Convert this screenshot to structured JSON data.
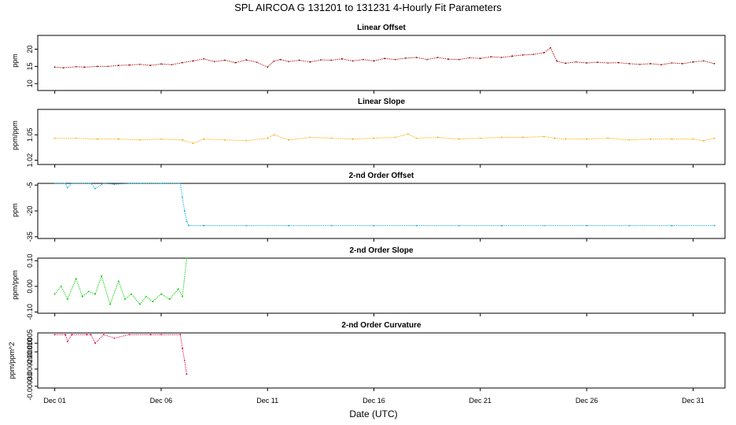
{
  "figure": {
    "title": "SPL   AIRCOA G   131201 to 131231   4-Hourly Fit Parameters",
    "xlabel": "Date (UTC)",
    "x_ticks": [
      {
        "label": "Dec 01",
        "day": 1
      },
      {
        "label": "Dec 06",
        "day": 6
      },
      {
        "label": "Dec 11",
        "day": 11
      },
      {
        "label": "Dec 16",
        "day": 16
      },
      {
        "label": "Dec 21",
        "day": 21
      },
      {
        "label": "Dec 26",
        "day": 26
      },
      {
        "label": "Dec 31",
        "day": 31
      }
    ],
    "x_range_days": [
      0.2,
      32.5
    ],
    "style": "dotted points per 4-hour interval"
  },
  "chart_data": [
    {
      "type": "scatter",
      "title": "Linear Offset",
      "ylabel": "ppm",
      "ylim": [
        8,
        24
      ],
      "y_ticks": [
        {
          "v": 10,
          "label": "10"
        },
        {
          "v": 15,
          "label": "15"
        },
        {
          "v": 20,
          "label": "20"
        }
      ],
      "color": "#a00000",
      "x_days": [
        1.0,
        1.4,
        2.0,
        2.4,
        3.0,
        3.5,
        4.0,
        4.5,
        5.0,
        5.5,
        6.0,
        6.5,
        7.0,
        7.5,
        8.0,
        8.5,
        9.0,
        9.5,
        10.0,
        10.5,
        11.0,
        11.3,
        11.6,
        12.0,
        12.5,
        13.0,
        13.5,
        14.0,
        14.5,
        15.0,
        15.5,
        16.0,
        16.5,
        17.0,
        17.5,
        18.0,
        18.5,
        19.0,
        19.5,
        20.0,
        20.5,
        21.0,
        21.5,
        22.0,
        22.5,
        23.0,
        23.5,
        24.0,
        24.3,
        24.6,
        25.0,
        25.5,
        26.0,
        26.5,
        27.0,
        27.5,
        28.0,
        28.5,
        29.0,
        29.5,
        30.0,
        30.5,
        31.0,
        31.5,
        32.0
      ],
      "values": [
        14.8,
        14.6,
        14.9,
        14.8,
        15.0,
        15.0,
        15.3,
        15.4,
        15.6,
        15.3,
        15.7,
        15.5,
        16.1,
        16.6,
        17.2,
        16.4,
        16.8,
        16.1,
        16.9,
        16.2,
        14.8,
        16.5,
        17.0,
        16.4,
        16.8,
        16.3,
        16.9,
        16.8,
        17.2,
        16.6,
        17.0,
        16.6,
        17.3,
        17.0,
        17.4,
        17.6,
        17.0,
        17.6,
        17.1,
        17.0,
        17.5,
        17.3,
        17.8,
        17.6,
        18.0,
        18.3,
        18.5,
        19.0,
        20.4,
        16.5,
        15.9,
        16.3,
        16.0,
        16.2,
        16.0,
        16.1,
        15.8,
        15.6,
        15.8,
        15.5,
        16.0,
        15.8,
        16.3,
        16.6,
        15.8
      ]
    },
    {
      "type": "scatter",
      "title": "Linear Slope",
      "ylabel": "ppm/ppm",
      "ylim": [
        1.015,
        1.08
      ],
      "y_ticks": [
        {
          "v": 1.02,
          "label": "1.02"
        },
        {
          "v": 1.05,
          "label": "1.05"
        }
      ],
      "color": "#ffa500",
      "x_days": [
        1.0,
        2.0,
        3.0,
        4.0,
        5.0,
        6.0,
        7.0,
        7.5,
        8.0,
        9.0,
        10.0,
        11.0,
        11.3,
        12.0,
        13.0,
        14.0,
        15.0,
        16.0,
        17.0,
        17.6,
        18.0,
        19.0,
        20.0,
        21.0,
        22.0,
        23.0,
        24.0,
        24.5,
        25.0,
        26.0,
        27.0,
        28.0,
        29.0,
        30.0,
        31.0,
        31.5,
        32.0
      ],
      "values": [
        1.046,
        1.046,
        1.045,
        1.045,
        1.044,
        1.045,
        1.044,
        1.04,
        1.045,
        1.044,
        1.043,
        1.046,
        1.05,
        1.044,
        1.047,
        1.046,
        1.045,
        1.046,
        1.047,
        1.051,
        1.046,
        1.047,
        1.045,
        1.046,
        1.047,
        1.047,
        1.048,
        1.046,
        1.045,
        1.045,
        1.046,
        1.044,
        1.045,
        1.045,
        1.045,
        1.043,
        1.046
      ]
    },
    {
      "type": "scatter",
      "title": "2-nd Order Offset",
      "ylabel": "ppm",
      "ylim": [
        -36,
        -4
      ],
      "y_ticks": [
        {
          "v": -5,
          "label": "-5"
        },
        {
          "v": -20,
          "label": "-20"
        },
        {
          "v": -35,
          "label": "-35"
        }
      ],
      "color": "#00aadd",
      "x_days": [
        1.0,
        1.5,
        1.6,
        1.8,
        2.5,
        2.7,
        2.9,
        3.3,
        3.8,
        4.5,
        5.0,
        6.0,
        6.9,
        7.0,
        7.1,
        7.2,
        7.3,
        8.0,
        10.0,
        12.0,
        14.0,
        16.0,
        18.0,
        20.0,
        22.0,
        24.0,
        26.0,
        28.0,
        30.0,
        32.0
      ],
      "values": [
        -4.0,
        -4.0,
        -6.5,
        -4.0,
        -4.0,
        -4.0,
        -7.0,
        -4.0,
        -4.5,
        -4.0,
        -4.0,
        -4.0,
        -4.0,
        -12.0,
        -20.0,
        -26.0,
        -28.5,
        -28.5,
        -28.5,
        -28.5,
        -28.5,
        -28.5,
        -28.5,
        -28.5,
        -28.5,
        -28.5,
        -28.5,
        -28.5,
        -28.5,
        -28.5
      ]
    },
    {
      "type": "scatter",
      "title": "2-nd Order Slope",
      "ylabel": "ppm/ppm",
      "ylim": [
        -0.105,
        0.11
      ],
      "y_ticks": [
        {
          "v": -0.1,
          "label": "-0.10"
        },
        {
          "v": 0.0,
          "label": "0.00"
        },
        {
          "v": 0.1,
          "label": "0.10"
        }
      ],
      "color": "#00cc00",
      "x_days": [
        1.0,
        1.3,
        1.6,
        2.0,
        2.3,
        2.6,
        2.9,
        3.2,
        3.6,
        4.0,
        4.3,
        4.6,
        5.0,
        5.3,
        5.6,
        6.0,
        6.4,
        6.8,
        7.0,
        7.2
      ],
      "values": [
        -0.03,
        0.0,
        -0.05,
        0.03,
        -0.04,
        -0.02,
        -0.03,
        0.04,
        -0.07,
        0.02,
        -0.05,
        -0.03,
        -0.07,
        -0.04,
        -0.06,
        -0.03,
        -0.05,
        -0.01,
        -0.04,
        0.11
      ]
    },
    {
      "type": "scatter",
      "title": "2-nd Order Curvature",
      "ylabel": "ppm/ppm^2",
      "ylim": [
        -0.00031,
        1e-05
      ],
      "y_ticks": [
        {
          "v": -5e-05,
          "label": "-0.00005"
        },
        {
          "v": -0.0001,
          "label": "-0.00010"
        },
        {
          "v": -0.0002,
          "label": "-0.00020"
        },
        {
          "v": -0.0003,
          "label": "-0.00030"
        }
      ],
      "color": "#dd0044",
      "x_days": [
        1.0,
        1.5,
        1.6,
        1.8,
        2.5,
        2.7,
        2.9,
        3.3,
        3.8,
        4.5,
        5.5,
        6.0,
        6.9,
        7.0,
        7.1,
        7.2
      ],
      "values": [
        0.0,
        0.0,
        -4e-05,
        0.0,
        0.0,
        0.0,
        -5e-05,
        0.0,
        -2e-05,
        0.0,
        0.0,
        0.0,
        0.0,
        -8e-05,
        -0.00015,
        -0.00023
      ]
    }
  ]
}
